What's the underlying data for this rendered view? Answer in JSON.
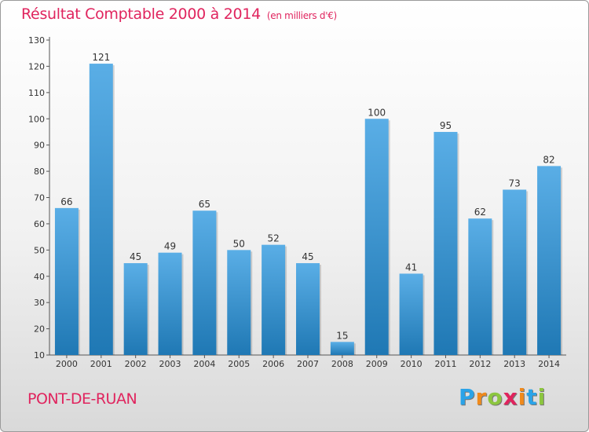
{
  "title": "Résultat Comptable 2000 à 2014",
  "title_unit": "(en milliers d'€)",
  "commune": "PONT-DE-RUAN",
  "logo": {
    "letters": [
      "P",
      "r",
      "o",
      "x",
      "i",
      "t",
      "i"
    ],
    "colors": [
      "#2aa3e8",
      "#f08a1c",
      "#8cc63f",
      "#e0245e",
      "#f08a1c",
      "#2aa3e8",
      "#8cc63f"
    ]
  },
  "colors": {
    "bar_dark": "#1f78b4",
    "bar_light": "#5aaee6",
    "title": "#e0245e"
  },
  "chart_data": {
    "type": "bar",
    "title": "Résultat Comptable 2000 à 2014 (en milliers d'€)",
    "xlabel": "",
    "ylabel": "",
    "categories": [
      "2000",
      "2001",
      "2002",
      "2003",
      "2004",
      "2005",
      "2006",
      "2007",
      "2008",
      "2009",
      "2010",
      "2011",
      "2012",
      "2013",
      "2014"
    ],
    "values": [
      66,
      121,
      45,
      49,
      65,
      50,
      52,
      45,
      15,
      100,
      41,
      95,
      62,
      73,
      82
    ],
    "ylim": [
      10,
      130
    ],
    "yticks": [
      10,
      20,
      30,
      40,
      50,
      60,
      70,
      80,
      90,
      100,
      110,
      120,
      130
    ],
    "grid": false
  }
}
